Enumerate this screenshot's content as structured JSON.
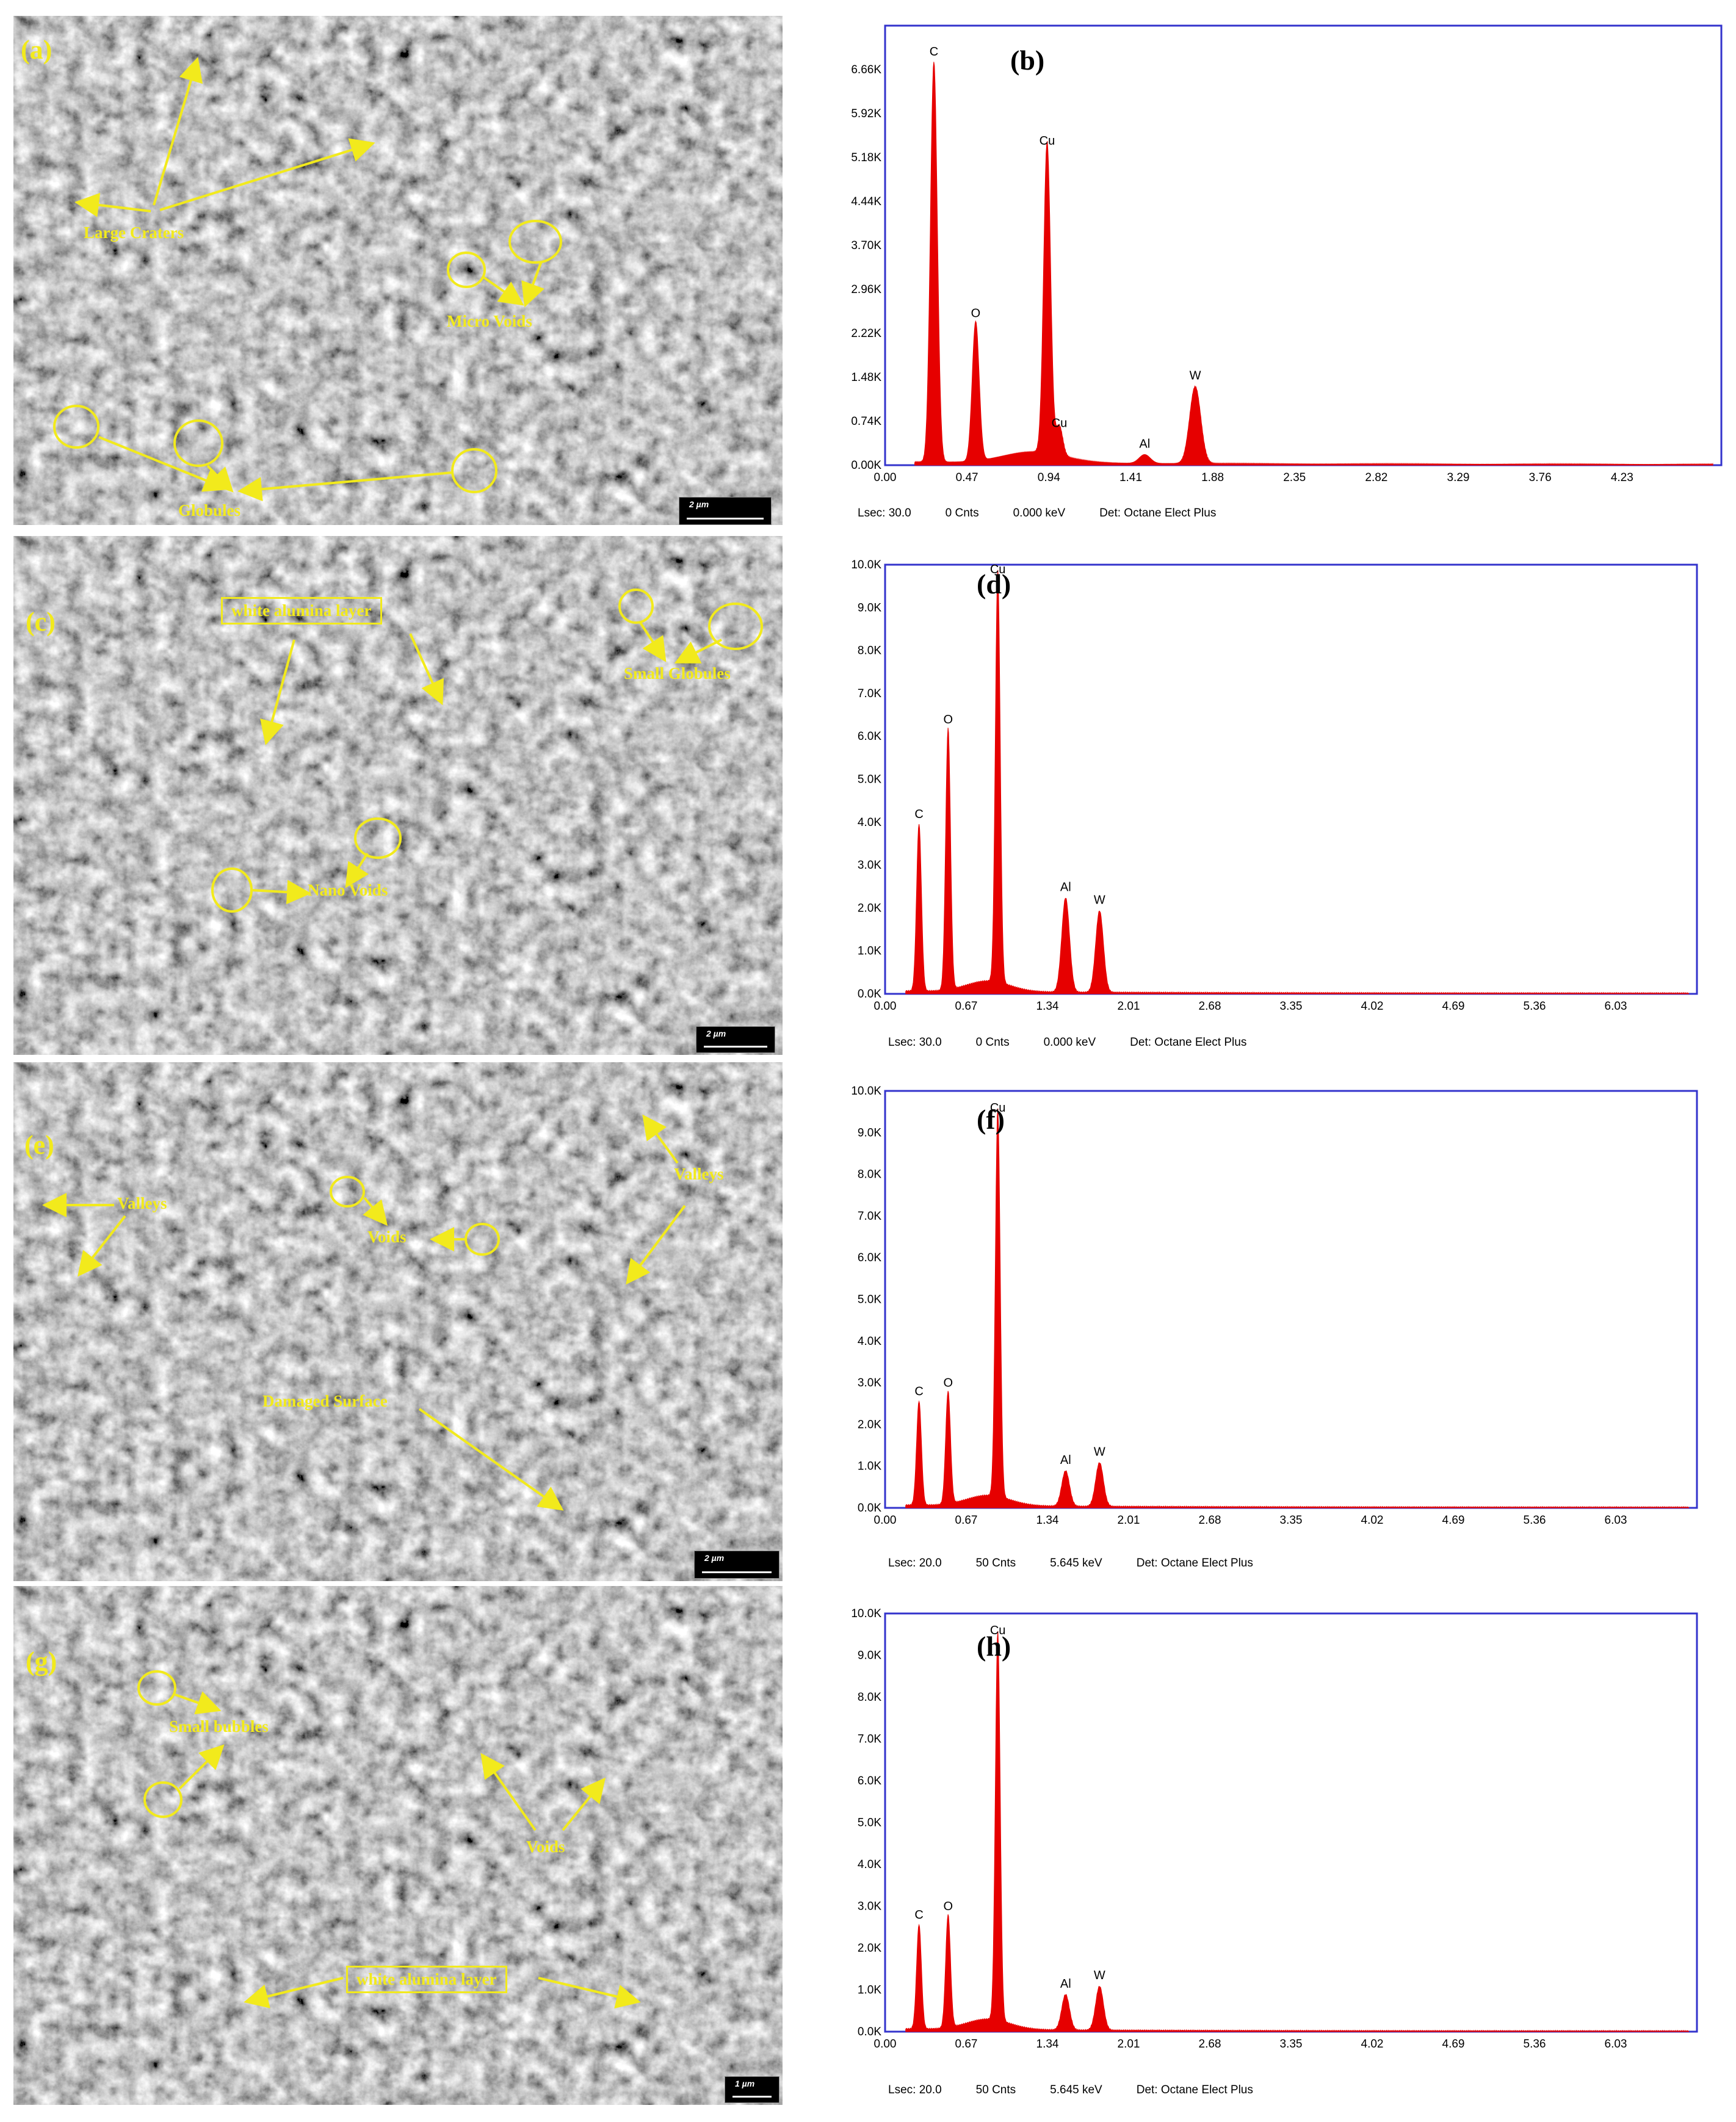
{
  "sem_panels": [
    {
      "label": "(a)",
      "scale": "2 µm",
      "annotations": {
        "large_craters": "Large Craters",
        "micro_voids": "Micro Voids",
        "globules": "Globules"
      }
    },
    {
      "label": "(c)",
      "scale": "2 µm",
      "annotations": {
        "white_alumina": "white alumina layer",
        "small_globules": "Small Globules",
        "nano_voids": "Nano Voids"
      }
    },
    {
      "label": "(e)",
      "scale": "2 µm",
      "annotations": {
        "valleys_left": "Valleys",
        "voids": "Voids",
        "valleys_right": "Valleys",
        "damaged_surface": "Damaged Surface"
      }
    },
    {
      "label": "(g)",
      "scale": "1 µm",
      "annotations": {
        "small_bubbles": "Small bubbles",
        "voids": "Voids",
        "white_alumina": "white alumina layer"
      }
    }
  ],
  "chart_data": [
    {
      "type": "line",
      "title": "(b)",
      "xticks": [
        "0.00",
        "0.47",
        "0.94",
        "1.41",
        "1.88",
        "2.35",
        "2.82",
        "3.29",
        "3.76",
        "4.23"
      ],
      "yticks": [
        "0.00K",
        "0.74K",
        "1.48K",
        "2.22K",
        "2.96K",
        "3.70K",
        "4.44K",
        "5.18K",
        "5.92K",
        "6.66K"
      ],
      "xlim": [
        0,
        4.8
      ],
      "ylim": [
        0,
        7.4
      ],
      "peaks": [
        {
          "element": "C",
          "x": 0.28,
          "y": 6.75
        },
        {
          "element": "O",
          "x": 0.52,
          "y": 2.35
        },
        {
          "element": "Cu",
          "x": 0.93,
          "y": 5.25
        },
        {
          "element": "Cu",
          "x": 1.0,
          "y": 0.5
        },
        {
          "element": "Al",
          "x": 1.49,
          "y": 0.15
        },
        {
          "element": "W",
          "x": 1.78,
          "y": 1.3
        }
      ],
      "footer": {
        "lsec": "Lsec: 30.0",
        "cnts": "0 Cnts",
        "kev": "0.000 keV",
        "det": "Det: Octane Elect Plus"
      }
    },
    {
      "type": "line",
      "title": "(d)",
      "xticks": [
        "0.00",
        "0.67",
        "1.34",
        "2.01",
        "2.68",
        "3.35",
        "4.02",
        "4.69",
        "5.36",
        "6.03"
      ],
      "yticks": [
        "0.0K",
        "1.0K",
        "2.0K",
        "3.0K",
        "4.0K",
        "5.0K",
        "6.0K",
        "7.0K",
        "8.0K",
        "9.0K",
        "10.0K"
      ],
      "xlim": [
        0,
        6.7
      ],
      "ylim": [
        0,
        10
      ],
      "peaks": [
        {
          "element": "C",
          "x": 0.28,
          "y": 3.9
        },
        {
          "element": "O",
          "x": 0.52,
          "y": 6.1
        },
        {
          "element": "Cu",
          "x": 0.93,
          "y": 9.6
        },
        {
          "element": "Al",
          "x": 1.49,
          "y": 2.2
        },
        {
          "element": "W",
          "x": 1.77,
          "y": 1.9
        }
      ],
      "footer": {
        "lsec": "Lsec: 30.0",
        "cnts": "0 Cnts",
        "kev": "0.000 keV",
        "det": "Det: Octane Elect Plus"
      }
    },
    {
      "type": "line",
      "title": "(f)",
      "xticks": [
        "0.00",
        "0.67",
        "1.34",
        "2.01",
        "2.68",
        "3.35",
        "4.02",
        "4.69",
        "5.36",
        "6.03"
      ],
      "yticks": [
        "0.0K",
        "1.0K",
        "2.0K",
        "3.0K",
        "4.0K",
        "5.0K",
        "6.0K",
        "7.0K",
        "8.0K",
        "9.0K",
        "10.0K"
      ],
      "xlim": [
        0,
        6.7
      ],
      "ylim": [
        0,
        10
      ],
      "peaks": [
        {
          "element": "C",
          "x": 0.28,
          "y": 2.5
        },
        {
          "element": "O",
          "x": 0.52,
          "y": 2.7
        },
        {
          "element": "Cu",
          "x": 0.93,
          "y": 9.3
        },
        {
          "element": "Al",
          "x": 1.49,
          "y": 0.85
        },
        {
          "element": "W",
          "x": 1.77,
          "y": 1.05
        }
      ],
      "footer": {
        "lsec": "Lsec: 20.0",
        "cnts": "50 Cnts",
        "kev": "5.645 keV",
        "det": "Det: Octane Elect Plus"
      }
    },
    {
      "type": "line",
      "title": "(h)",
      "xticks": [
        "0.00",
        "0.67",
        "1.34",
        "2.01",
        "2.68",
        "3.35",
        "4.02",
        "4.69",
        "5.36",
        "6.03"
      ],
      "yticks": [
        "0.0K",
        "1.0K",
        "2.0K",
        "3.0K",
        "4.0K",
        "5.0K",
        "6.0K",
        "7.0K",
        "8.0K",
        "9.0K",
        "10.0K"
      ],
      "xlim": [
        0,
        6.7
      ],
      "ylim": [
        0,
        10
      ],
      "peaks": [
        {
          "element": "C",
          "x": 0.28,
          "y": 2.5
        },
        {
          "element": "O",
          "x": 0.52,
          "y": 2.7
        },
        {
          "element": "Cu",
          "x": 0.93,
          "y": 9.3
        },
        {
          "element": "Al",
          "x": 1.49,
          "y": 0.85
        },
        {
          "element": "W",
          "x": 1.77,
          "y": 1.05
        }
      ],
      "footer": {
        "lsec": "Lsec: 20.0",
        "cnts": "50 Cnts",
        "kev": "5.645 keV",
        "det": "Det: Octane Elect Plus"
      }
    }
  ],
  "colors": {
    "annotation": "#f2ea1c",
    "spectrum": "#e60000",
    "frame": "#3333cc"
  }
}
